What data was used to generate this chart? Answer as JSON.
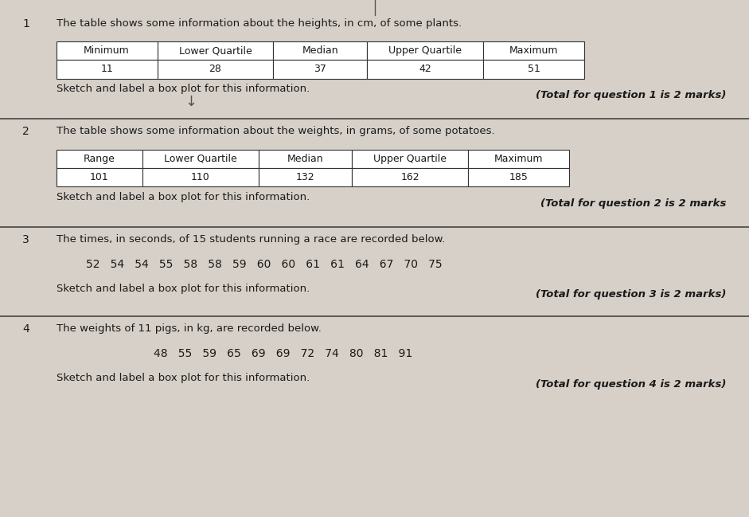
{
  "bg_color": "#d6d0c8",
  "text_color": "#1a1a1a",
  "q1": {
    "number": "1",
    "intro": "The table shows some information about the heights, in cm, of some plants.",
    "table_headers": [
      "Minimum",
      "Lower Quartile",
      "Median",
      "Upper Quartile",
      "Maximum"
    ],
    "table_values": [
      "11",
      "28",
      "37",
      "42",
      "51"
    ],
    "instruction": "Sketch and label a box plot for this information.",
    "total": "(Total for question 1 is 2 marks)"
  },
  "q2": {
    "number": "2",
    "intro": "The table shows some information about the weights, in grams, of some potatoes.",
    "table_headers": [
      "Range",
      "Lower Quartile",
      "Median",
      "Upper Quartile",
      "Maximum"
    ],
    "table_values": [
      "101",
      "110",
      "132",
      "162",
      "185"
    ],
    "instruction": "Sketch and label a box plot for this information.",
    "total": "(Total for question 2 is 2 marks"
  },
  "q3": {
    "number": "3",
    "intro": "The times, in seconds, of 15 students running a race are recorded below.",
    "data": "52   54   54   55   58   58   59   60   60   61   61   64   67   70   75",
    "instruction": "Sketch and label a box plot for this information.",
    "total": "(Total for question 3 is 2 marks)"
  },
  "q4": {
    "number": "4",
    "intro": "The weights of 11 pigs, in kg, are recorded below.",
    "data": "48   55   59   65   69   69   72   74   80   81   91",
    "instruction": "Sketch and label a box plot for this information.",
    "total": "(Total for question 4 is 2 marks)"
  }
}
